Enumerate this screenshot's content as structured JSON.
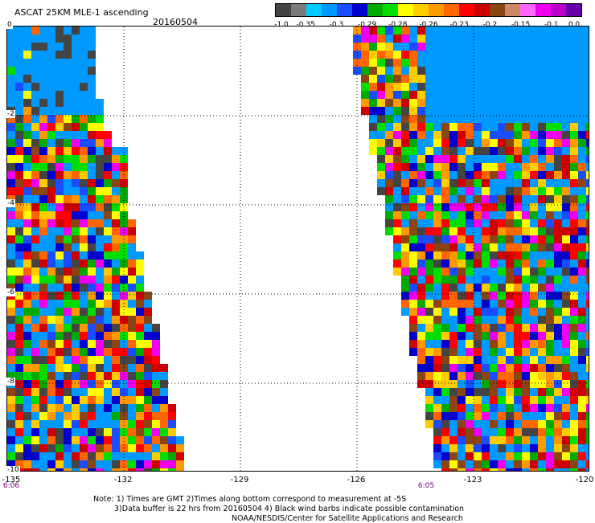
{
  "header": {
    "title": "ASCAT 25KM MLE-1 ascending",
    "date": "20160504"
  },
  "legend": {
    "colors": [
      "#444444",
      "#7a7a7a",
      "#00ccff",
      "#0099ff",
      "#1a4dff",
      "#0000cc",
      "#00aa00",
      "#00dd00",
      "#ffff00",
      "#ffcc00",
      "#ff9900",
      "#ff6600",
      "#ff0000",
      "#cc0000",
      "#8b4513",
      "#cc8866",
      "#ff66ff",
      "#ee00ee",
      "#bb00cc",
      "#6600aa"
    ],
    "labels": [
      "-1.0",
      "-0.35",
      "-0.3",
      "-0.29",
      "-0.28",
      "-0.26",
      "-0.23",
      "-0.2",
      "-0.15",
      "-0.1",
      "0.0"
    ]
  },
  "map": {
    "y_axis": {
      "labels": [
        "0",
        "-2",
        "-4",
        "-6",
        "-8",
        "-10"
      ],
      "range": [
        0,
        -10
      ]
    },
    "x_axis": {
      "labels": [
        "-135",
        "-132",
        "-129",
        "-126",
        "-123",
        "-120"
      ],
      "range": [
        -135,
        -120
      ]
    },
    "time_labels": [
      {
        "text": "6:06",
        "lon": -135
      },
      {
        "text": "6:05",
        "lon": -124.2
      }
    ],
    "swath_colors": [
      "#0099ff",
      "#0099ff",
      "#0099ff",
      "#1a4dff",
      "#0000cc",
      "#00aa00",
      "#00dd00",
      "#ffff00",
      "#ffcc00",
      "#ff9900",
      "#ff6600",
      "#ff0000",
      "#cc0000",
      "#8b4513",
      "#444444",
      "#ee00ee"
    ]
  },
  "notes": {
    "line1": "Note: 1) Times are GMT 2)Times along bottom correspond to measurement at -5S",
    "line2": "3)Data buffer is 22 hrs from 20160504 4) Black wind barbs indicate possible contamination",
    "line3": "NOAA/NESDIS/Center for Satellite Applications and Research"
  }
}
